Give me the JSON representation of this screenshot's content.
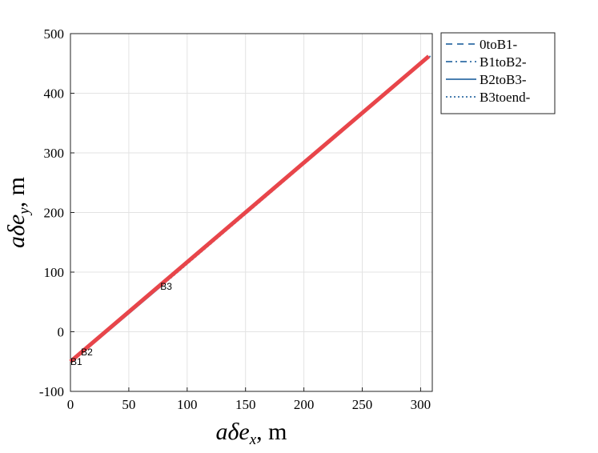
{
  "chart_data": {
    "type": "line",
    "title": "",
    "xlabel": {
      "var": "aδe",
      "sub": "x",
      "unit": ", m"
    },
    "ylabel": {
      "var": "aδe",
      "sub": "y",
      "unit": ", m"
    },
    "xlim": [
      0,
      310
    ],
    "ylim": [
      -100,
      500
    ],
    "xticks": [
      0,
      50,
      100,
      150,
      200,
      250,
      300
    ],
    "yticks": [
      -100,
      0,
      100,
      200,
      300,
      400,
      500
    ],
    "grid": true,
    "legend_position": "outside-top-right",
    "series": [
      {
        "name": "0toB1-",
        "style": "dashed",
        "color": "#4a7fb0",
        "x": [
          0,
          0.8
        ],
        "y": [
          -50,
          -49
        ]
      },
      {
        "name": "B1toB2-",
        "style": "dashdot",
        "color": "#4a7fb0",
        "x": [
          0.8,
          11
        ],
        "y": [
          -49,
          -34
        ]
      },
      {
        "name": "B2toB3-",
        "style": "solid",
        "color": "#4a7fb0",
        "x": [
          11,
          78
        ],
        "y": [
          -34,
          77
        ]
      },
      {
        "name": "B3toend-",
        "style": "dotted",
        "color": "#4a7fb0",
        "x": [
          78,
          310
        ],
        "y": [
          77,
          465
        ]
      }
    ],
    "highlight_line": {
      "color": "#e8454a",
      "x": [
        0,
        307
      ],
      "y": [
        -50,
        462
      ]
    },
    "annotations": [
      {
        "text": "B1",
        "x": 0,
        "y": -50
      },
      {
        "text": "B2",
        "x": 9,
        "y": -34
      },
      {
        "text": "B3",
        "x": 77,
        "y": 76
      }
    ]
  }
}
